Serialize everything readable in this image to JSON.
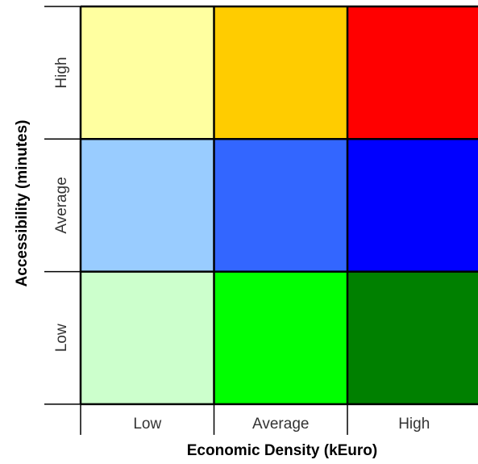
{
  "chart_data": {
    "type": "heatmap",
    "title": "",
    "xlabel": "Economic Density (kEuro)",
    "ylabel": "Accessibility (minutes)",
    "x_categories": [
      "Low",
      "Average",
      "High"
    ],
    "y_categories": [
      "Low",
      "Average",
      "High"
    ],
    "grid": true,
    "cells": [
      {
        "x": "Low",
        "y": "High",
        "color": "#ffffa0"
      },
      {
        "x": "Average",
        "y": "High",
        "color": "#ffcc00"
      },
      {
        "x": "High",
        "y": "High",
        "color": "#ff0000"
      },
      {
        "x": "Low",
        "y": "Average",
        "color": "#99ccff"
      },
      {
        "x": "Average",
        "y": "Average",
        "color": "#3366ff"
      },
      {
        "x": "High",
        "y": "Average",
        "color": "#0000ff"
      },
      {
        "x": "Low",
        "y": "Low",
        "color": "#ccffcc"
      },
      {
        "x": "Average",
        "y": "Low",
        "color": "#00ff00"
      },
      {
        "x": "High",
        "y": "Low",
        "color": "#008000"
      }
    ]
  }
}
